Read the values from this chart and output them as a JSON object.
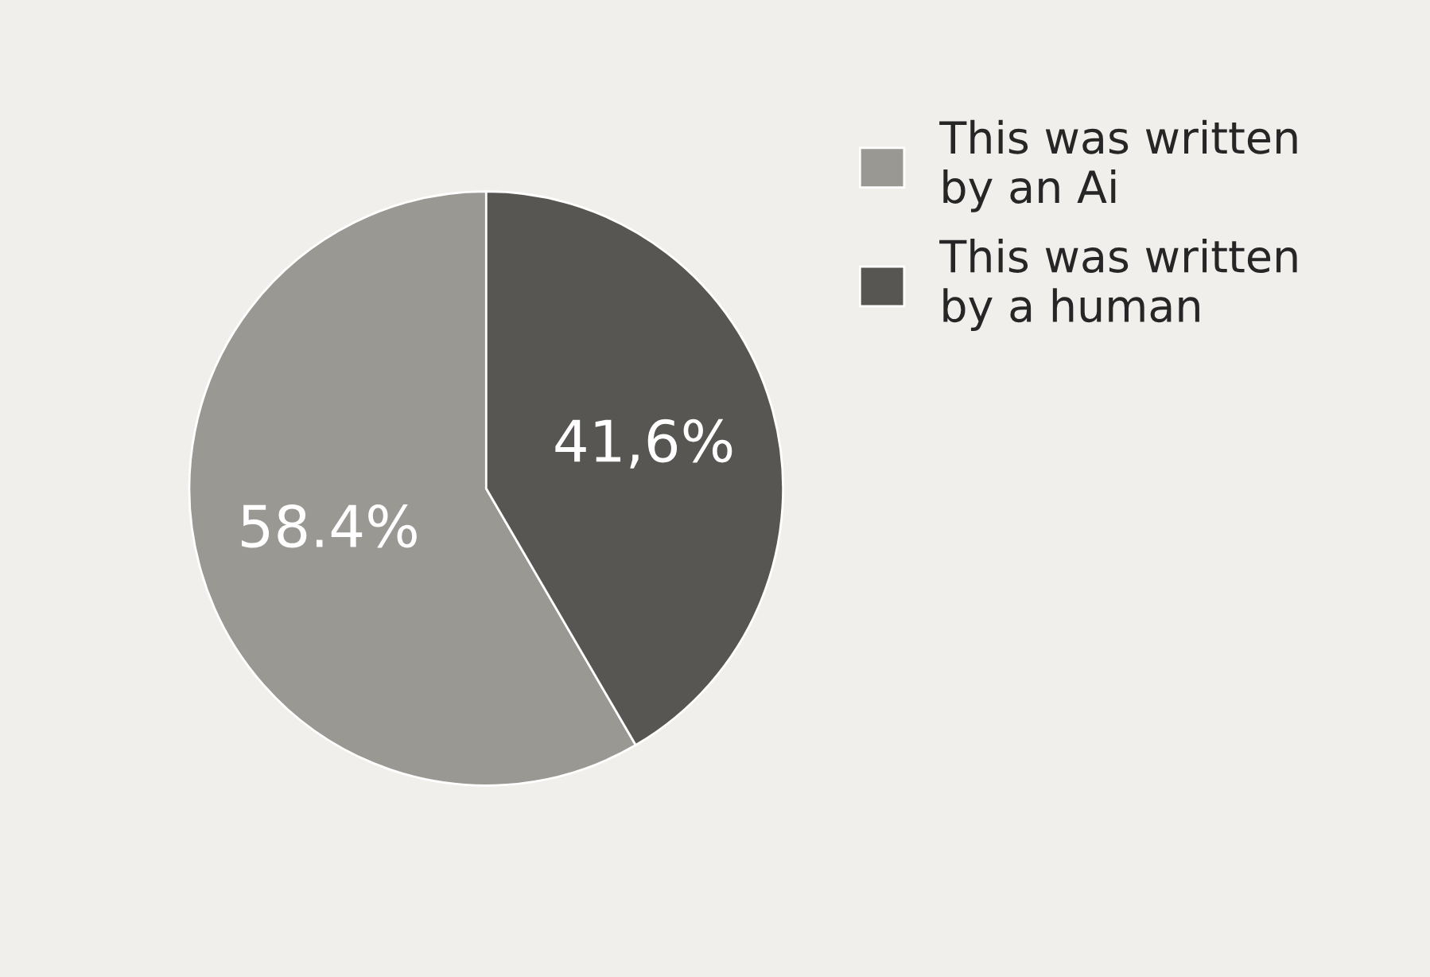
{
  "chart_data": {
    "type": "pie",
    "categories": [
      "This was written\nby an Ai",
      "This was written\nby a human"
    ],
    "values": [
      58.4,
      41.6
    ],
    "colors": [
      "#9a9893",
      "#575652"
    ],
    "value_labels": [
      "58.4%",
      "41,6%"
    ],
    "legend": "top right"
  }
}
